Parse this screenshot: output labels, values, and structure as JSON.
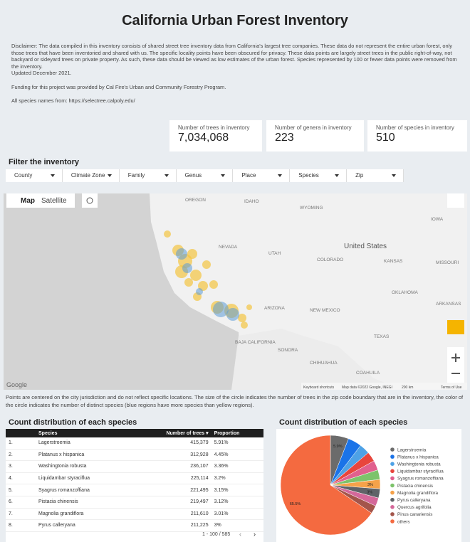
{
  "header": {
    "title": "California Urban Forest Inventory"
  },
  "disclaimer": {
    "paragraphs": [
      "Disclaimer: The data compiled in this inventory consists of shared street tree inventory data from California's largest tree companies. These data do not represent the entire urban forest, only those trees that have been inventoried and shared with us.  The specific locality points have been obscured for privacy.  These data points are largely street trees in the public right-of-way, not backyard or sideyard trees on private property.  As such, these data should be viewed as low estimates of the urban forest. Species represented by 100 or fewer data points were removed from the inventory.",
      "Updated December 2021.",
      "Funding for this project was provided by Cal Fire's Urban and Community Forestry Program.",
      "All species names from: https://selectree.calpoly.edu/"
    ]
  },
  "kpis": [
    {
      "label": "Number of trees in inventory",
      "value": "7,034,068"
    },
    {
      "label": "Number of genera in inventory",
      "value": "223"
    },
    {
      "label": "Number of species in inventory",
      "value": "510"
    }
  ],
  "filters": {
    "title": "Filter the inventory",
    "items": [
      "County",
      "Climate Zone",
      "Family",
      "Genus",
      "Place",
      "Species",
      "Zip"
    ]
  },
  "map": {
    "buttons": [
      "Map",
      "Satellite"
    ],
    "labels": [
      "OREGON",
      "IDAHO",
      "WYOMING",
      "IOWA",
      "NEVADA",
      "UTAH",
      "United States",
      "COLORADO",
      "KANSAS",
      "MISSOURI",
      "OKLAHOMA",
      "ARIZONA",
      "NEW MEXICO",
      "ARKANSAS",
      "BAJA CALIFORNIA",
      "SONORA",
      "TEXAS",
      "CHIHUAHUA",
      "COAHUILA"
    ],
    "logo": "Google",
    "attribution": [
      "Keyboard shortcuts",
      "Map data ©2022 Google, INEGI",
      "200 km",
      "Terms of Use"
    ]
  },
  "map_caption": "Points are centered on the city jurisdiction and do not reflect specific locations. The size of the circle indicates the number of trees in the zip code boundary that are in the inventory, the color of the circle indicates the number of distinct species (blue regions have more species than yellow regions).",
  "table": {
    "title": "Count distribution of each species",
    "columns": [
      "Species",
      "Number of trees",
      "Proportion"
    ],
    "rows": [
      [
        "1.",
        "Lagerstroemia",
        "415,379",
        "5.91%"
      ],
      [
        "2.",
        "Platanus x hispanica",
        "312,928",
        "4.45%"
      ],
      [
        "3.",
        "Washingtonia robusta",
        "236,107",
        "3.36%"
      ],
      [
        "4.",
        "Liquidambar styraciflua",
        "225,114",
        "3.2%"
      ],
      [
        "5.",
        "Syagrus romanzoffiana",
        "221,495",
        "3.15%"
      ],
      [
        "6.",
        "Pistacia chinensis",
        "219,497",
        "3.12%"
      ],
      [
        "7.",
        "Magnolia grandiflora",
        "211,610",
        "3.01%"
      ],
      [
        "8.",
        "Pyrus calleryana",
        "211,225",
        "3%"
      ]
    ],
    "pagination": "1 - 100 / 585"
  },
  "chart_data": {
    "type": "pie",
    "title": "Count distribution of each species",
    "categories": [
      "Lagerstroemia",
      "Platanus x hispanica",
      "Washingtonia robusta",
      "Liquidambar styraciflua",
      "Syagrus romanzoffiana",
      "Pistacia chinensis",
      "Magnolia grandiflora",
      "Pyrus calleryana",
      "Quercus agrifolia",
      "Pinus canariensis",
      "others"
    ],
    "values": [
      5.91,
      4.45,
      3.36,
      3.2,
      3.15,
      3.12,
      3.01,
      3,
      2.7,
      2.6,
      65.5
    ],
    "value_labels": [
      "5.9%",
      null,
      null,
      null,
      null,
      null,
      "3%",
      "3%",
      null,
      null,
      "65.5%"
    ],
    "colors": [
      "#6b6b6b",
      "#1a73e8",
      "#4ea2e6",
      "#e8453c",
      "#e1608e",
      "#7dc36b",
      "#f5a24a",
      "#5f6368",
      "#d4689a",
      "#a3554b",
      "#f46a40"
    ],
    "legend": "right"
  }
}
